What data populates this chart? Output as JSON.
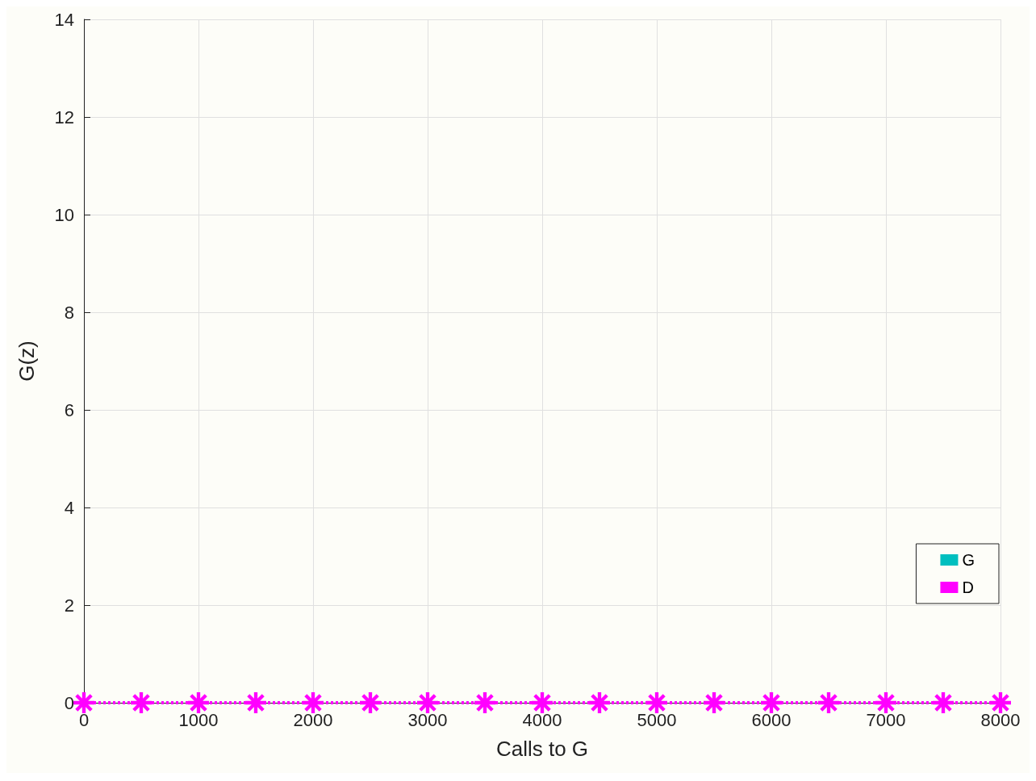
{
  "chart_data": {
    "type": "line",
    "xlabel": "Calls to G",
    "ylabel": "G(z)",
    "x": [
      0,
      500,
      1000,
      1500,
      2000,
      2500,
      3000,
      3500,
      4000,
      4500,
      5000,
      5500,
      6000,
      6500,
      7000,
      7500,
      8000
    ],
    "series": [
      {
        "name": "G",
        "color": "#00bfbf",
        "values": [
          null,
          null,
          null,
          null,
          null,
          null,
          null,
          null,
          null,
          null,
          null,
          null,
          null,
          null,
          null,
          null,
          null
        ]
      },
      {
        "name": "D",
        "color": "#ff00ff",
        "values": [
          0,
          0,
          0,
          0,
          0,
          0,
          0,
          0,
          0,
          0,
          0,
          0,
          0,
          0,
          0,
          0,
          0
        ]
      }
    ],
    "xlim": [
      0,
      8000
    ],
    "xticks": [
      0,
      1000,
      2000,
      3000,
      4000,
      5000,
      6000,
      7000,
      8000
    ],
    "ylim": [
      0,
      14
    ],
    "yticks": [
      0,
      2,
      4,
      6,
      8,
      10,
      12,
      14
    ],
    "grid": true,
    "legend": "bottom right",
    "marker": "star",
    "line_style": "dotted"
  }
}
